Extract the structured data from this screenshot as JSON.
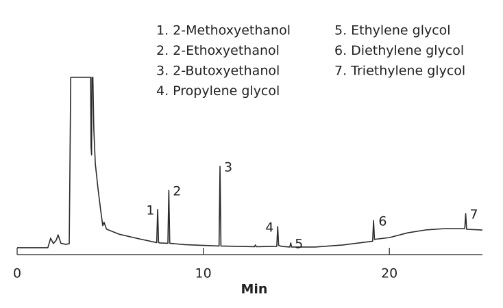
{
  "chart_data": {
    "type": "line",
    "x_label": "Min",
    "xlim": [
      0,
      25
    ],
    "xticks": [
      0,
      10,
      20
    ],
    "ylim": [
      0,
      100
    ],
    "color": "#2a2a2a",
    "compounds": [
      "1. 2-Methoxyethanol",
      "2. 2-Ethoxyethanol",
      "3. 2-Butoxyethanol",
      "4. Propylene glycol",
      "5. Ethylene glycol",
      "6. Diethylene glycol",
      "7. Triethylene glycol"
    ],
    "peaks": [
      {
        "label": "1",
        "x": 7.6
      },
      {
        "label": "2",
        "x": 8.15
      },
      {
        "label": "3",
        "x": 10.9
      },
      {
        "label": "4",
        "x": 14.0
      },
      {
        "label": "5",
        "x": 14.7
      },
      {
        "label": "6",
        "x": 19.2
      },
      {
        "label": "7",
        "x": 24.1
      }
    ],
    "x": [
      0,
      1.65,
      1.8,
      1.95,
      2.1,
      2.2,
      2.35,
      2.6,
      2.8,
      2.88,
      3.95,
      3.97,
      4.0,
      4.02,
      4.07,
      4.12,
      4.2,
      4.35,
      4.5,
      4.6,
      4.67,
      4.8,
      5.5,
      6.5,
      7.5,
      7.55,
      7.6,
      7.65,
      8.1,
      8.15,
      8.2,
      9,
      10.85,
      10.9,
      10.95,
      12.75,
      12.8,
      12.85,
      13.95,
      14.0,
      14.05,
      14.2,
      14.65,
      14.7,
      14.75,
      16,
      17.5,
      19.1,
      19.15,
      19.2,
      19.3,
      20,
      21,
      22,
      23,
      24.05,
      24.1,
      24.15,
      25
    ],
    "values": [
      1.2,
      1.2,
      6.7,
      3.6,
      5.6,
      8.7,
      3.8,
      3.2,
      3.5,
      100,
      100,
      60,
      55,
      100,
      100,
      70,
      50,
      35,
      22,
      14,
      16,
      12,
      9,
      6.5,
      4.2,
      23.4,
      4.2,
      4,
      3.8,
      34.5,
      3.8,
      3,
      2.2,
      48.4,
      2.2,
      1.8,
      2.8,
      1.8,
      2,
      13.5,
      2.6,
      2,
      1.6,
      4,
      1.6,
      1.6,
      2.8,
      5,
      17,
      6,
      6.2,
      7.1,
      9.9,
      11.6,
      12.3,
      12.3,
      21,
      11.9,
      11.5
    ]
  }
}
